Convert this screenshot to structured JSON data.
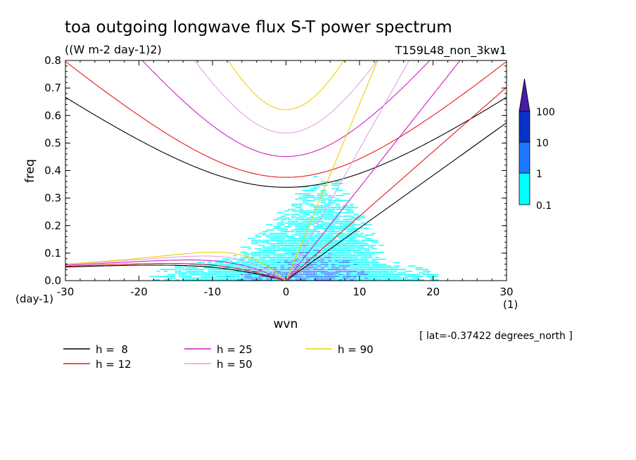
{
  "chart_data": {
    "type": "heatmap",
    "title": "toa outgoing longwave flux S-T power spectrum",
    "subtitle": "((W m-2 day-1)2)",
    "run_label": "T159L48_non_3kw1",
    "xlabel": "wvn",
    "ylabel": "freq",
    "x_unit_label": "(1)",
    "y_unit_label": "(day-1)",
    "xlim": [
      -30,
      30
    ],
    "ylim": [
      0,
      0.8
    ],
    "x_ticks": [
      "-30",
      "-20",
      "-10",
      "0",
      "10",
      "20",
      "30"
    ],
    "y_ticks": [
      "0.0",
      "0.1",
      "0.2",
      "0.3",
      "0.4",
      "0.5",
      "0.6",
      "0.7",
      "0.8"
    ],
    "footnote": "[ lat=-0.37422 degrees_north ]",
    "colorbar": {
      "labels": [
        "0.1",
        "1",
        "10",
        "100"
      ],
      "colors": [
        "#00ffff",
        "#1e78ff",
        "#0a32c8",
        "#4a1aa8"
      ]
    },
    "dispersion_curves": [
      {
        "label": "h =  8",
        "color": "#000000"
      },
      {
        "label": "h = 12",
        "color": "#e41a1a"
      },
      {
        "label": "h = 25",
        "color": "#d21ec8"
      },
      {
        "label": "h = 50",
        "color": "#e6a0e6"
      },
      {
        "label": "h = 90",
        "color": "#f0d000"
      }
    ]
  }
}
